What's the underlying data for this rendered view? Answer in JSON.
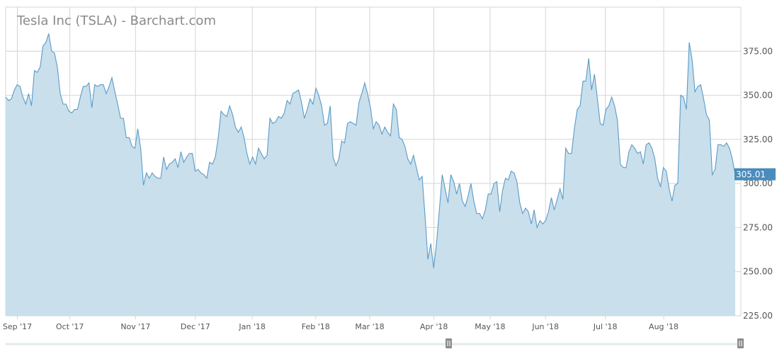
{
  "chart_data": {
    "type": "area",
    "title": "Tesla Inc (TSLA) - Barchart.com",
    "xlabel": "",
    "ylabel": "",
    "ylim": [
      225,
      400
    ],
    "y_ticks": [
      "375.00",
      "350.00",
      "325.00",
      "300.00",
      "275.00",
      "250.00",
      "225.00"
    ],
    "x_ticks": [
      "Sep '17",
      "Oct '17",
      "Nov '17",
      "Dec '17",
      "Jan '18",
      "Feb '18",
      "Mar '18",
      "Apr '18",
      "May '18",
      "Jun '18",
      "Jul '18",
      "Aug '18"
    ],
    "last_value_label": "305.01",
    "series": [
      {
        "values": [
          349,
          347,
          348,
          353,
          356,
          355,
          349,
          345,
          351,
          344,
          364,
          363,
          366,
          378,
          380,
          385,
          375,
          374,
          366,
          351,
          345,
          345,
          341,
          340,
          342,
          342,
          349,
          355,
          355,
          357,
          343,
          356,
          355,
          356,
          356,
          351,
          355,
          360,
          352,
          345,
          337,
          337,
          326,
          326,
          321,
          320,
          331,
          320,
          299,
          306,
          303,
          306,
          304,
          303,
          303,
          315,
          308,
          311,
          312,
          314,
          309,
          318,
          312,
          315,
          317,
          317,
          307,
          308,
          306,
          305,
          303,
          312,
          311,
          315,
          326,
          341,
          339,
          338,
          344,
          339,
          332,
          329,
          332,
          326,
          317,
          311,
          315,
          311,
          320,
          317,
          314,
          316,
          337,
          334,
          335,
          338,
          337,
          340,
          347,
          345,
          351,
          352,
          353,
          346,
          337,
          342,
          348,
          345,
          354,
          350,
          344,
          333,
          334,
          344,
          315,
          310,
          314,
          324,
          323,
          334,
          335,
          334,
          333,
          346,
          351,
          357,
          351,
          343,
          331,
          335,
          333,
          328,
          332,
          329,
          327,
          345,
          342,
          326,
          325,
          321,
          314,
          311,
          316,
          309,
          302,
          304,
          282,
          257,
          266,
          252,
          266,
          285,
          305,
          297,
          289,
          305,
          301,
          294,
          300,
          290,
          287,
          293,
          300,
          290,
          283,
          283,
          280,
          285,
          294,
          294,
          300,
          301,
          284,
          296,
          303,
          302,
          307,
          306,
          301,
          289,
          283,
          286,
          284,
          277,
          285,
          275,
          279,
          277,
          279,
          284,
          292,
          285,
          291,
          297,
          291,
          320,
          317,
          317,
          331,
          342,
          344,
          358,
          358,
          371,
          353,
          362,
          348,
          334,
          333,
          342,
          344,
          349,
          344,
          336,
          311,
          309,
          309,
          318,
          322,
          320,
          317,
          318,
          311,
          322,
          323,
          320,
          314,
          303,
          298,
          309,
          307,
          297,
          290,
          299,
          300,
          350,
          349,
          342,
          380,
          370,
          352,
          355,
          356,
          348,
          339,
          336,
          305,
          308,
          322,
          322,
          321,
          323,
          320,
          314,
          305
        ]
      }
    ],
    "colors": {
      "line": "#5b9bc7",
      "fill": "#c9dfec",
      "grid": "#d4d4d4",
      "last_label_bg": "#4a8cbc"
    },
    "grid": true,
    "y_axis_position": "right"
  }
}
